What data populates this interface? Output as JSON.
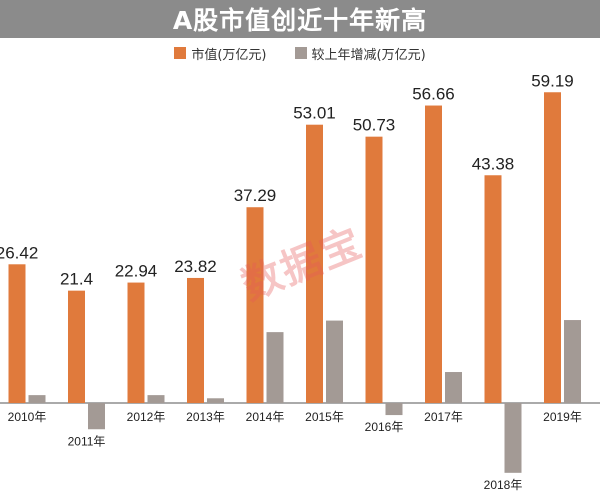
{
  "title": "A股市值创近十年新高",
  "watermark": "数据宝",
  "colors": {
    "orange": "#e07a3c",
    "gray": "#a39a95",
    "title_bg": "#8b8b8b"
  },
  "chart_data": {
    "type": "bar",
    "categories": [
      "2010年",
      "2011年",
      "2012年",
      "2013年",
      "2014年",
      "2015年",
      "2016年",
      "2017年",
      "2018年",
      "2019年"
    ],
    "series": [
      {
        "name": "市值(万亿元)",
        "values": [
          26.42,
          21.4,
          22.94,
          23.82,
          37.29,
          53.01,
          50.73,
          56.66,
          43.38,
          59.19
        ]
      },
      {
        "name": "较上年增减(万亿元)",
        "values": [
          1.5,
          -5.0,
          1.5,
          0.9,
          13.5,
          15.7,
          -2.3,
          5.9,
          -13.3,
          15.8
        ]
      }
    ],
    "data_labels": [
      "26.42",
      "21.4",
      "22.94",
      "23.82",
      "37.29",
      "53.01",
      "50.73",
      "56.66",
      "43.38",
      "59.19"
    ],
    "legend_position": "top",
    "grid": false
  }
}
